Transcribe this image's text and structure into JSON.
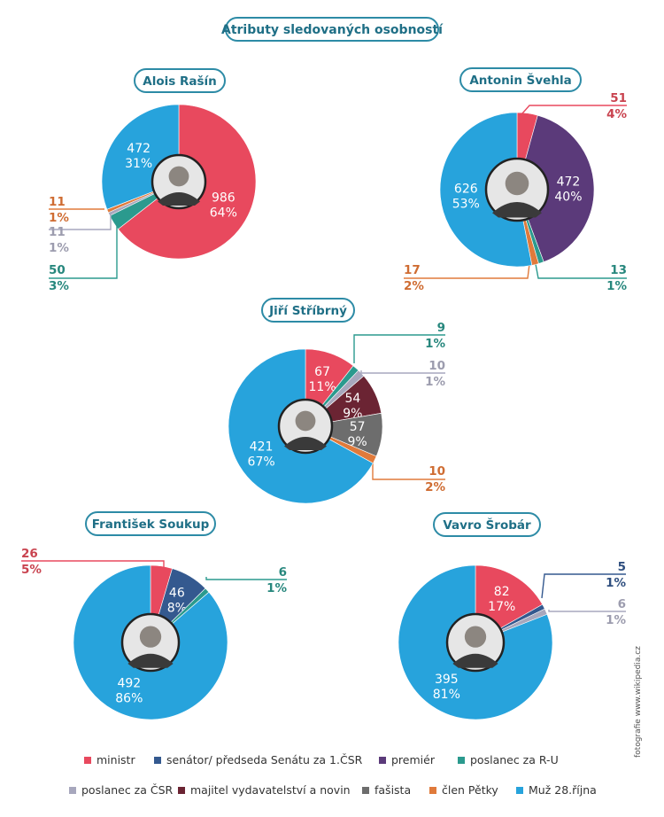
{
  "title": "Atributy sledovaných osobností",
  "credit": "fotografie www.wikipedia.cz",
  "legend": [
    {
      "key": "ministr",
      "label": "ministr",
      "color": "#e8495e"
    },
    {
      "key": "senator",
      "label": "senátor/ předseda Senátu za 1.ČSR",
      "color": "#34598f"
    },
    {
      "key": "premier",
      "label": "premiér",
      "color": "#5b3a7a"
    },
    {
      "key": "poslanec_ru",
      "label": "poslanec za R-U",
      "color": "#2b9a8e"
    },
    {
      "key": "poslanec_csr",
      "label": "poslanec za ČSR",
      "color": "#a7a7bd"
    },
    {
      "key": "majitel",
      "label": "majitel vydavatelství a novin",
      "color": "#6b2433"
    },
    {
      "key": "fasista",
      "label": "fašista",
      "color": "#6d6d6d"
    },
    {
      "key": "clen_petky",
      "label": "člen Pětky",
      "color": "#e07a3b"
    },
    {
      "key": "muz28",
      "label": "Muž 28.října",
      "color": "#27a3dc"
    }
  ],
  "chart_data": [
    {
      "type": "pie",
      "title": "Alois Rašín",
      "slices": [
        {
          "category": "ministr",
          "value": 986,
          "percent": "64%"
        },
        {
          "category": "poslanec_ru",
          "value": 50,
          "percent": "3%"
        },
        {
          "category": "poslanec_csr",
          "value": 11,
          "percent": "1%"
        },
        {
          "category": "clen_petky",
          "value": 11,
          "percent": "1%"
        },
        {
          "category": "muz28",
          "value": 472,
          "percent": "31%"
        }
      ]
    },
    {
      "type": "pie",
      "title": "Antonin Švehla",
      "slices": [
        {
          "category": "ministr",
          "value": 51,
          "percent": "4%"
        },
        {
          "category": "premier",
          "value": 472,
          "percent": "40%"
        },
        {
          "category": "poslanec_ru",
          "value": 13,
          "percent": "1%"
        },
        {
          "category": "clen_petky",
          "value": 17,
          "percent": "2%"
        },
        {
          "category": "muz28",
          "value": 626,
          "percent": "53%"
        }
      ]
    },
    {
      "type": "pie",
      "title": "Jiří Stříbrný",
      "slices": [
        {
          "category": "ministr",
          "value": 67,
          "percent": "11%"
        },
        {
          "category": "poslanec_ru",
          "value": 9,
          "percent": "1%"
        },
        {
          "category": "poslanec_csr",
          "value": 10,
          "percent": "1%"
        },
        {
          "category": "majitel",
          "value": 54,
          "percent": "9%"
        },
        {
          "category": "fasista",
          "value": 57,
          "percent": "9%"
        },
        {
          "category": "clen_petky",
          "value": 10,
          "percent": "2%"
        },
        {
          "category": "muz28",
          "value": 421,
          "percent": "67%"
        }
      ]
    },
    {
      "type": "pie",
      "title": "František Soukup",
      "slices": [
        {
          "category": "ministr",
          "value": 26,
          "percent": "5%"
        },
        {
          "category": "senator",
          "value": 46,
          "percent": "8%"
        },
        {
          "category": "poslanec_ru",
          "value": 6,
          "percent": "1%"
        },
        {
          "category": "muz28",
          "value": 492,
          "percent": "86%"
        }
      ]
    },
    {
      "type": "pie",
      "title": "Vavro Šrobár",
      "slices": [
        {
          "category": "ministr",
          "value": 82,
          "percent": "17%"
        },
        {
          "category": "senator",
          "value": 5,
          "percent": "1%"
        },
        {
          "category": "poslanec_csr",
          "value": 6,
          "percent": "1%"
        },
        {
          "category": "muz28",
          "value": 395,
          "percent": "81%"
        }
      ]
    }
  ]
}
